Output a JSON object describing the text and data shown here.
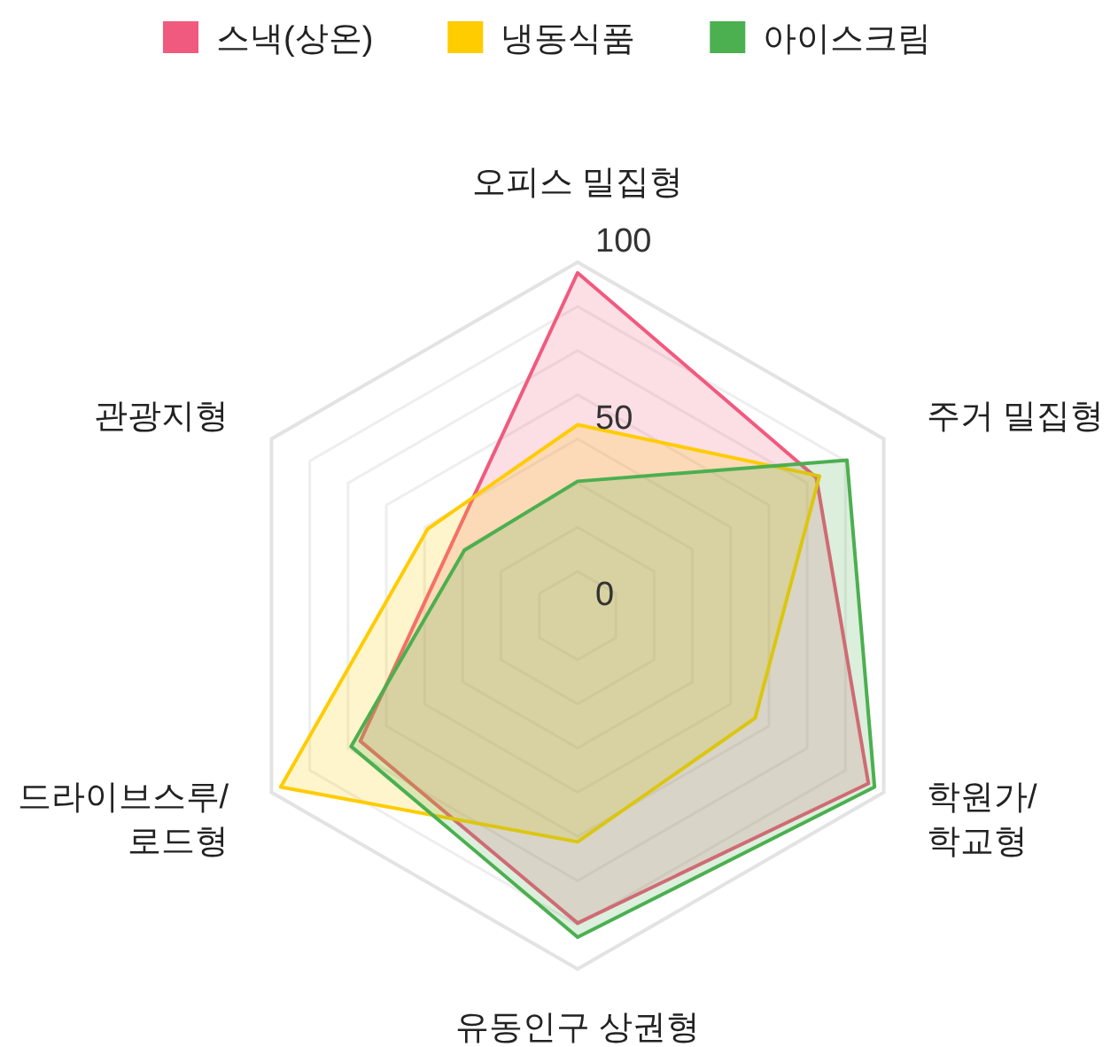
{
  "chart_data": {
    "type": "radar",
    "categories": [
      "오피스 밀집형",
      "주거 밀집형",
      "학원가/\n학교형",
      "유동인구 상권형",
      "드라이브스루/\n로드형",
      "관광지형"
    ],
    "series": [
      {
        "name": "스낵(상온)",
        "color": "#f05a7e",
        "values": [
          97,
          78,
          95,
          87,
          71,
          41
        ]
      },
      {
        "name": "냉동식품",
        "color": "#ffcc00",
        "values": [
          54,
          79,
          58,
          64,
          97,
          49
        ]
      },
      {
        "name": "아이스크림",
        "color": "#4caf50",
        "values": [
          38,
          88,
          97,
          91,
          74,
          37
        ]
      }
    ],
    "ylim": [
      0,
      100
    ],
    "yticks": [
      0,
      50,
      100
    ],
    "grid": true,
    "legend": "top"
  }
}
